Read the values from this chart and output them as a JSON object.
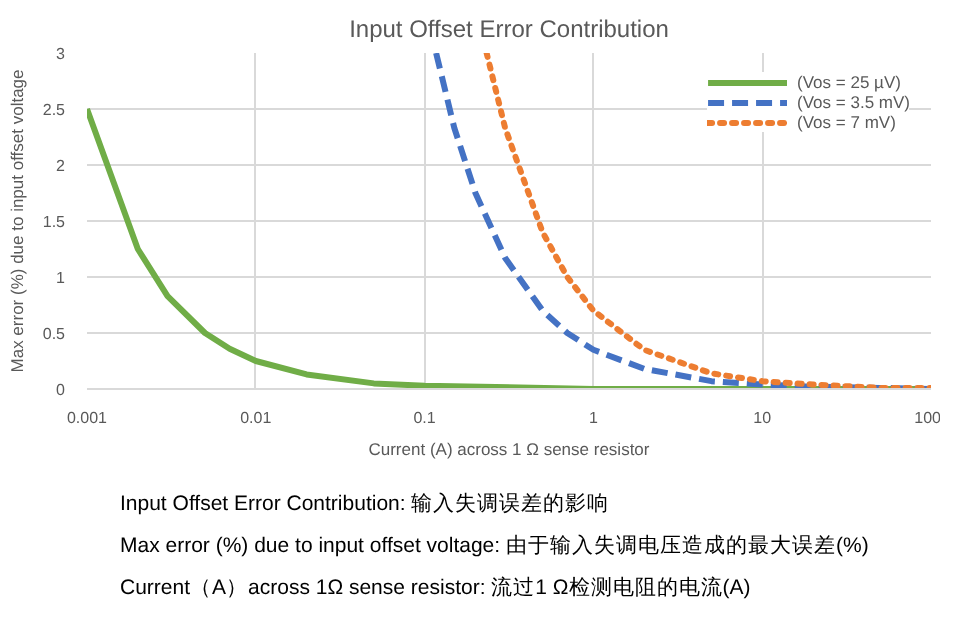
{
  "chart_data": {
    "type": "line",
    "title": "Input Offset Error Contribution",
    "xlabel": "Current (A) across 1 Ω sense resistor",
    "ylabel": "Max error (%) due to input offset voltage",
    "log": "x",
    "xlim": [
      0.001,
      100
    ],
    "xticks": [
      0.001,
      0.01,
      0.1,
      1,
      10,
      100
    ],
    "ylim": [
      0,
      3
    ],
    "yticks": [
      0,
      0.5,
      1,
      1.5,
      2,
      2.5,
      3
    ],
    "grid": true,
    "legend": "top right",
    "series": [
      {
        "name": "(Vos = 25 µV)",
        "color": "#70ad47",
        "line_style": "solid",
        "x": [
          0.001,
          0.002,
          0.003,
          0.005,
          0.007,
          0.01,
          0.02,
          0.05,
          0.1,
          1,
          10,
          100
        ],
        "values": [
          2.5,
          1.25,
          0.83,
          0.5,
          0.36,
          0.25,
          0.13,
          0.05,
          0.03,
          0,
          0,
          0
        ]
      },
      {
        "name": "(Vos = 3.5 mV)",
        "color": "#4472c4",
        "line_style": "dashed",
        "x": [
          0.117,
          0.15,
          0.2,
          0.3,
          0.5,
          0.7,
          1,
          2,
          5,
          10,
          20,
          50,
          100
        ],
        "values": [
          3,
          2.33,
          1.75,
          1.17,
          0.7,
          0.5,
          0.35,
          0.18,
          0.07,
          0.04,
          0.02,
          0.01,
          0
        ]
      },
      {
        "name": "(Vos = 7 mV)",
        "color": "#ed7d31",
        "line_style": "dotted",
        "x": [
          0.233,
          0.3,
          0.5,
          0.7,
          1,
          2,
          5,
          10,
          20,
          50,
          100
        ],
        "values": [
          3,
          2.33,
          1.4,
          1,
          0.7,
          0.35,
          0.14,
          0.07,
          0.04,
          0.01,
          0.01
        ]
      }
    ],
    "annotations": [
      "Input Offset Error Contribution: 输入失调误差的影响",
      "Max error (%) due to input offset voltage: 由于输入失调电压造成的最大误差(%)",
      "Current（A）across 1Ω sense resistor: 流过1 Ω检测电阻的电流(A)"
    ]
  }
}
